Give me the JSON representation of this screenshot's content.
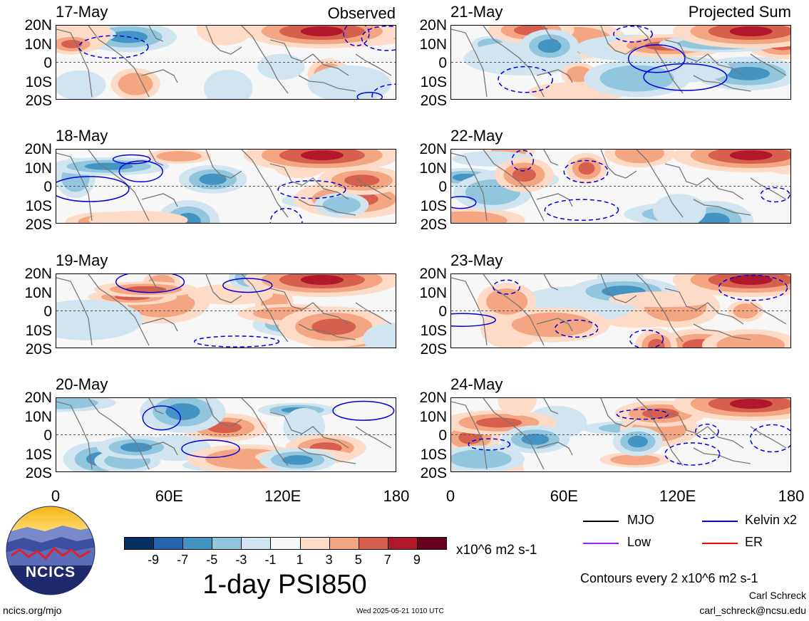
{
  "header": {
    "observed_label": "Observed",
    "projected_label": "Projected Sum"
  },
  "panels_left": [
    {
      "date": "17-May"
    },
    {
      "date": "18-May"
    },
    {
      "date": "19-May"
    },
    {
      "date": "20-May"
    }
  ],
  "panels_right": [
    {
      "date": "21-May"
    },
    {
      "date": "22-May"
    },
    {
      "date": "23-May"
    },
    {
      "date": "24-May"
    }
  ],
  "lat_labels": [
    "20N",
    "10N",
    "0",
    "10S",
    "20S"
  ],
  "lon_labels": [
    "0",
    "60E",
    "120E",
    "180"
  ],
  "colorbar": {
    "ticks": [
      "-9",
      "-7",
      "-5",
      "-3",
      "-1",
      "1",
      "3",
      "5",
      "7",
      "9"
    ],
    "colors": [
      "#053061",
      "#2166ac",
      "#4393c3",
      "#92c5de",
      "#d1e5f0",
      "#f7f7f7",
      "#fddbc7",
      "#f4a582",
      "#d6604d",
      "#b2182b",
      "#67001f"
    ],
    "units": "x10^6 m2 s-1",
    "title": "1-day PSI850"
  },
  "legend": {
    "items": [
      {
        "label": "MJO",
        "color": "#000000"
      },
      {
        "label": "Kelvin x2",
        "color": "#0000ff"
      },
      {
        "label": "Low",
        "color": "#a020f0"
      },
      {
        "label": "ER",
        "color": "#ff0000"
      }
    ],
    "contour_note": "Contours every 2 x10^6 m2 s-1"
  },
  "logo": {
    "text": "NCICS"
  },
  "footer": {
    "url": "ncics.org/mjo",
    "timestamp": "Wed 2025-05-21 1010 UTC",
    "author": "Carl Schreck",
    "email": "carl_schreck@ncsu.edu"
  }
}
